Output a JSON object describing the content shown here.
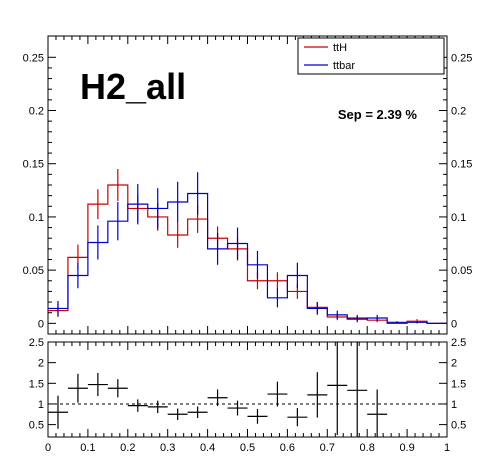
{
  "chart_data": [
    {
      "type": "histogram",
      "title": "H2_all",
      "annotation": "Sep = 2.39 %",
      "xlim": [
        0,
        1
      ],
      "ylim": [
        -0.01,
        0.27
      ],
      "y_ticks": [
        "0",
        "0.05",
        "0.1",
        "0.15",
        "0.2",
        "0.25"
      ],
      "y_tick_values": [
        0,
        0.05,
        0.1,
        0.15,
        0.2,
        0.25
      ],
      "legend_position": "top-right",
      "colors": {
        "ttH": "#cc0000",
        "ttbar": "#0000cc"
      },
      "bin_edges": [
        0,
        0.05,
        0.1,
        0.15,
        0.2,
        0.25,
        0.3,
        0.35,
        0.4,
        0.45,
        0.5,
        0.55,
        0.6,
        0.65,
        0.7,
        0.75,
        0.8,
        0.85,
        0.9,
        0.95,
        1.0
      ],
      "series": [
        {
          "name": "ttH",
          "values": [
            0.012,
            0.062,
            0.112,
            0.13,
            0.108,
            0.1,
            0.083,
            0.098,
            0.08,
            0.07,
            0.04,
            0.04,
            0.03,
            0.015,
            0.006,
            0.005,
            0.003,
            0.0,
            0.002,
            0.0
          ],
          "errors": [
            0.006,
            0.012,
            0.014,
            0.015,
            0.013,
            0.013,
            0.012,
            0.013,
            0.011,
            0.011,
            0.008,
            0.008,
            0.007,
            0.005,
            0.003,
            0.003,
            0.002,
            0.0,
            0.002,
            0.0
          ]
        },
        {
          "name": "ttbar",
          "values": [
            0.014,
            0.045,
            0.076,
            0.096,
            0.112,
            0.108,
            0.114,
            0.122,
            0.07,
            0.075,
            0.055,
            0.024,
            0.045,
            0.014,
            0.008,
            0.004,
            0.005,
            0.001,
            0.001,
            0.0
          ],
          "errors": [
            0.007,
            0.012,
            0.016,
            0.018,
            0.019,
            0.019,
            0.019,
            0.02,
            0.015,
            0.015,
            0.013,
            0.009,
            0.012,
            0.006,
            0.004,
            0.003,
            0.003,
            0.001,
            0.001,
            0.0
          ]
        }
      ]
    },
    {
      "type": "scatter",
      "xlim": [
        0,
        1
      ],
      "ylim": [
        0.2,
        2.5
      ],
      "x_ticks": [
        "0",
        "0.1",
        "0.2",
        "0.3",
        "0.4",
        "0.5",
        "0.6",
        "0.7",
        "0.8",
        "0.9",
        "1"
      ],
      "x_tick_values": [
        0,
        0.1,
        0.2,
        0.3,
        0.4,
        0.5,
        0.6,
        0.7,
        0.8,
        0.9,
        1
      ],
      "y_ticks": [
        "0.5",
        "1",
        "1.5",
        "2",
        "2.5"
      ],
      "y_tick_values": [
        0.5,
        1,
        1.5,
        2,
        2.5
      ],
      "reference_line": 1,
      "points": [
        {
          "x": 0.025,
          "y": 0.8,
          "yerr": 0.4
        },
        {
          "x": 0.075,
          "y": 1.38,
          "yerr": 0.35
        },
        {
          "x": 0.125,
          "y": 1.47,
          "yerr": 0.28
        },
        {
          "x": 0.175,
          "y": 1.38,
          "yerr": 0.22
        },
        {
          "x": 0.225,
          "y": 0.96,
          "yerr": 0.15
        },
        {
          "x": 0.275,
          "y": 0.93,
          "yerr": 0.15
        },
        {
          "x": 0.325,
          "y": 0.75,
          "yerr": 0.14
        },
        {
          "x": 0.375,
          "y": 0.8,
          "yerr": 0.14
        },
        {
          "x": 0.425,
          "y": 1.15,
          "yerr": 0.2
        },
        {
          "x": 0.475,
          "y": 0.9,
          "yerr": 0.18
        },
        {
          "x": 0.525,
          "y": 0.7,
          "yerr": 0.18
        },
        {
          "x": 0.575,
          "y": 1.24,
          "yerr": 0.3
        },
        {
          "x": 0.625,
          "y": 0.68,
          "yerr": 0.22
        },
        {
          "x": 0.675,
          "y": 1.22,
          "yerr": 0.55
        },
        {
          "x": 0.725,
          "y": 1.45,
          "yerr": 1.2
        },
        {
          "x": 0.775,
          "y": 1.33,
          "yerr": 1.2
        },
        {
          "x": 0.825,
          "y": 0.75,
          "yerr": 0.6
        }
      ]
    }
  ]
}
